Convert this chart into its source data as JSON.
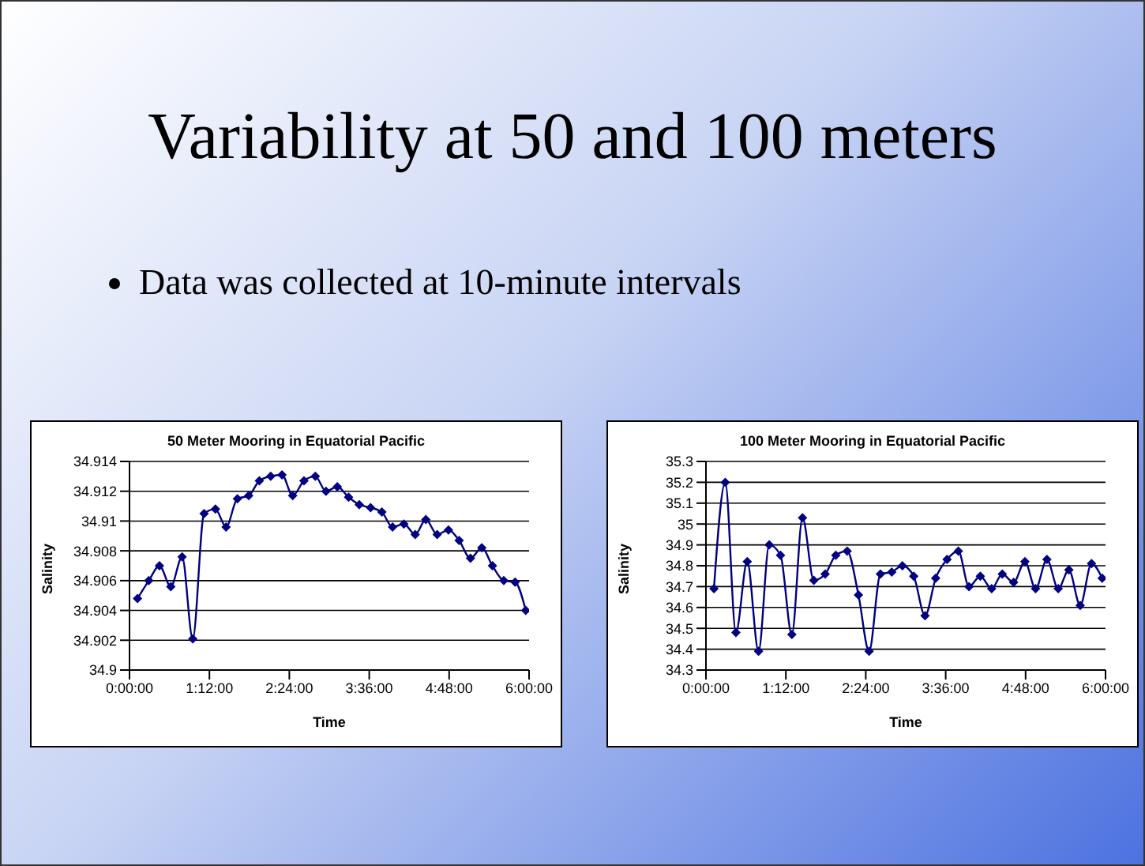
{
  "chart_data": [
    {
      "type": "other",
      "title": "Variability at 50 and 100 meters",
      "annotations": [
        "Data was collected at 10-minute intervals"
      ]
    },
    {
      "type": "line",
      "title": "50 Meter Mooring in Equatorial Pacific",
      "xlabel": "Time",
      "ylabel": "Salinity",
      "x": [
        0.12,
        0.29,
        0.45,
        0.62,
        0.79,
        0.95,
        1.12,
        1.29,
        1.45,
        1.62,
        1.79,
        1.95,
        2.12,
        2.29,
        2.45,
        2.62,
        2.79,
        2.95,
        3.12,
        3.29,
        3.45,
        3.62,
        3.79,
        3.95,
        4.12,
        4.29,
        4.45,
        4.62,
        4.79,
        4.95,
        5.12,
        5.29,
        5.45,
        5.62,
        5.79,
        5.95
      ],
      "series": [
        {
          "color": "#000080",
          "values": [
            34.9048,
            34.906,
            34.907,
            34.9056,
            34.9076,
            34.9021,
            34.9105,
            34.9108,
            34.9096,
            34.9115,
            34.9117,
            34.9127,
            34.913,
            34.9131,
            34.9117,
            34.9127,
            34.913,
            34.912,
            34.9123,
            34.9116,
            34.9111,
            34.9109,
            34.9106,
            34.9096,
            34.9098,
            34.9091,
            34.9101,
            34.9091,
            34.9094,
            34.9087,
            34.9075,
            34.9082,
            34.907,
            34.906,
            34.9059,
            34.904
          ]
        }
      ],
      "xlim": [
        0,
        6
      ],
      "xticks": [
        {
          "value": 0,
          "label": "0:00:00"
        },
        {
          "value": 1.2,
          "label": "1:12:00"
        },
        {
          "value": 2.4,
          "label": "2:24:00"
        },
        {
          "value": 3.6,
          "label": "3:36:00"
        },
        {
          "value": 4.8,
          "label": "4:48:00"
        },
        {
          "value": 6,
          "label": "6:00:00"
        }
      ],
      "ylim": [
        34.9,
        34.914
      ],
      "yticks": [
        34.9,
        34.902,
        34.904,
        34.906,
        34.908,
        34.91,
        34.912,
        34.914
      ],
      "grid": "y",
      "legend": false,
      "marker": "diamond",
      "line_style": "solid"
    },
    {
      "type": "line",
      "title": "100 Meter Mooring in Equatorial Pacific",
      "xlabel": "Time",
      "ylabel": "Salinity",
      "x": [
        0.12,
        0.29,
        0.45,
        0.62,
        0.79,
        0.95,
        1.12,
        1.29,
        1.45,
        1.62,
        1.79,
        1.95,
        2.12,
        2.29,
        2.45,
        2.62,
        2.79,
        2.95,
        3.12,
        3.29,
        3.45,
        3.62,
        3.79,
        3.95,
        4.12,
        4.29,
        4.45,
        4.62,
        4.79,
        4.95,
        5.12,
        5.29,
        5.45,
        5.62,
        5.79,
        5.95
      ],
      "series": [
        {
          "color": "#000080",
          "values": [
            34.69,
            35.2,
            34.48,
            34.82,
            34.39,
            34.9,
            34.85,
            34.47,
            35.03,
            34.73,
            34.76,
            34.85,
            34.87,
            34.66,
            34.39,
            34.76,
            34.77,
            34.8,
            34.75,
            34.56,
            34.74,
            34.83,
            34.87,
            34.7,
            34.75,
            34.69,
            34.76,
            34.72,
            34.82,
            34.69,
            34.83,
            34.69,
            34.78,
            34.61,
            34.81,
            34.74
          ]
        }
      ],
      "xlim": [
        0,
        6
      ],
      "xticks": [
        {
          "value": 0,
          "label": "0:00:00"
        },
        {
          "value": 1.2,
          "label": "1:12:00"
        },
        {
          "value": 2.4,
          "label": "2:24:00"
        },
        {
          "value": 3.6,
          "label": "3:36:00"
        },
        {
          "value": 4.8,
          "label": "4:48:00"
        },
        {
          "value": 6,
          "label": "6:00:00"
        }
      ],
      "ylim": [
        34.3,
        35.3
      ],
      "yticks": [
        34.3,
        34.4,
        34.5,
        34.6,
        34.7,
        34.8,
        34.9,
        35,
        35.1,
        35.2,
        35.3
      ],
      "grid": "y",
      "legend": false,
      "marker": "diamond",
      "line_style": "solid"
    }
  ]
}
